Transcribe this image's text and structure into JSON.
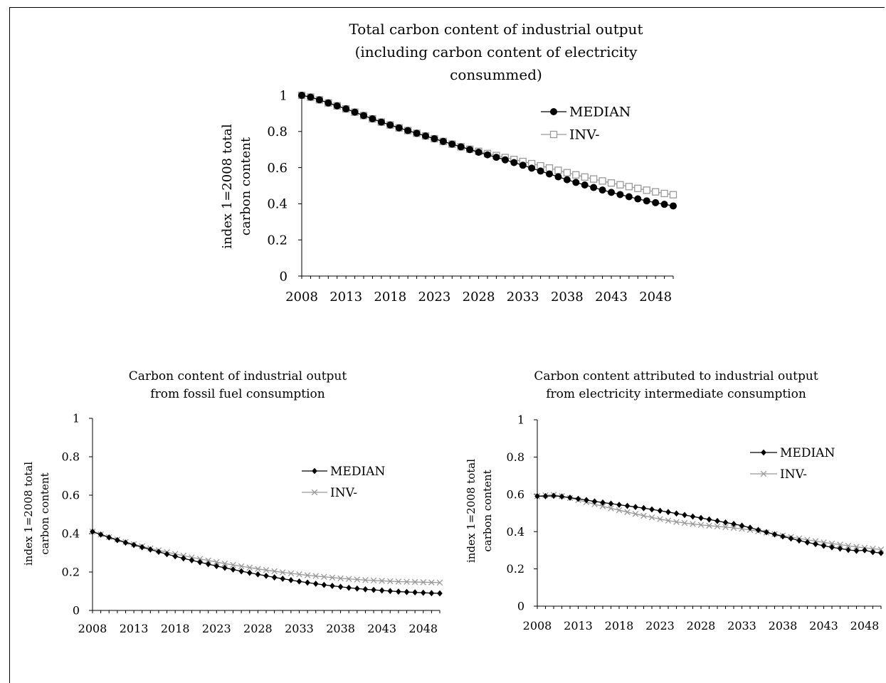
{
  "chart_data": [
    {
      "type": "line",
      "title": [
        "Total carbon content of industrial output",
        "(including carbon content of electricity",
        "consummed)"
      ],
      "ylabel": [
        "index 1=2008 total",
        "carbon content"
      ],
      "xlabel": "",
      "ylim": [
        0,
        1
      ],
      "yticks": [
        "0",
        "0.2",
        "0.4",
        "0.6",
        "0.8",
        "1"
      ],
      "xticks": [
        "2008",
        "2013",
        "2018",
        "2023",
        "2028",
        "2033",
        "2038",
        "2043",
        "2048"
      ],
      "legend_position": "top-right",
      "x": [
        2008,
        2009,
        2010,
        2011,
        2012,
        2013,
        2014,
        2015,
        2016,
        2017,
        2018,
        2019,
        2020,
        2021,
        2022,
        2023,
        2024,
        2025,
        2026,
        2027,
        2028,
        2029,
        2030,
        2031,
        2032,
        2033,
        2034,
        2035,
        2036,
        2037,
        2038,
        2039,
        2040,
        2041,
        2042,
        2043,
        2044,
        2045,
        2046,
        2047,
        2048,
        2049,
        2050
      ],
      "series": [
        {
          "name": "MEDIAN",
          "color": "#000000",
          "marker": "circle",
          "values": [
            1.0,
            0.99,
            0.975,
            0.958,
            0.942,
            0.925,
            0.907,
            0.888,
            0.87,
            0.852,
            0.836,
            0.82,
            0.805,
            0.79,
            0.775,
            0.76,
            0.745,
            0.73,
            0.715,
            0.7,
            0.685,
            0.671,
            0.657,
            0.643,
            0.628,
            0.613,
            0.597,
            0.581,
            0.565,
            0.549,
            0.533,
            0.518,
            0.504,
            0.49,
            0.476,
            0.463,
            0.451,
            0.439,
            0.427,
            0.416,
            0.406,
            0.397,
            0.388
          ]
        },
        {
          "name": "INV-",
          "color": "#999999",
          "marker": "square",
          "values": [
            1.0,
            0.99,
            0.975,
            0.958,
            0.942,
            0.925,
            0.907,
            0.888,
            0.87,
            0.852,
            0.836,
            0.82,
            0.805,
            0.79,
            0.775,
            0.76,
            0.745,
            0.73,
            0.715,
            0.702,
            0.69,
            0.678,
            0.667,
            0.656,
            0.645,
            0.634,
            0.622,
            0.61,
            0.598,
            0.585,
            0.572,
            0.56,
            0.548,
            0.537,
            0.526,
            0.515,
            0.505,
            0.495,
            0.485,
            0.475,
            0.466,
            0.457,
            0.45
          ]
        }
      ]
    },
    {
      "type": "line",
      "title": [
        "Carbon content of industrial output",
        "from fossil fuel consumption"
      ],
      "ylabel": [
        "index 1=2008 total",
        "carbon content"
      ],
      "xlabel": "",
      "ylim": [
        0,
        1
      ],
      "yticks": [
        "0",
        "0.2",
        "0.4",
        "0.6",
        "0.8",
        "1"
      ],
      "xticks": [
        "2008",
        "2013",
        "2018",
        "2023",
        "2028",
        "2033",
        "2038",
        "2043",
        "2048"
      ],
      "legend_position": "right",
      "x": [
        2008,
        2009,
        2010,
        2011,
        2012,
        2013,
        2014,
        2015,
        2016,
        2017,
        2018,
        2019,
        2020,
        2021,
        2022,
        2023,
        2024,
        2025,
        2026,
        2027,
        2028,
        2029,
        2030,
        2031,
        2032,
        2033,
        2034,
        2035,
        2036,
        2037,
        2038,
        2039,
        2040,
        2041,
        2042,
        2043,
        2044,
        2045,
        2046,
        2047,
        2048,
        2049,
        2050
      ],
      "series": [
        {
          "name": "MEDIAN",
          "color": "#000000",
          "marker": "diamond",
          "values": [
            0.41,
            0.395,
            0.38,
            0.366,
            0.353,
            0.341,
            0.329,
            0.317,
            0.305,
            0.293,
            0.282,
            0.271,
            0.261,
            0.251,
            0.241,
            0.231,
            0.222,
            0.213,
            0.204,
            0.196,
            0.188,
            0.18,
            0.172,
            0.165,
            0.158,
            0.151,
            0.145,
            0.139,
            0.133,
            0.128,
            0.123,
            0.118,
            0.114,
            0.11,
            0.107,
            0.104,
            0.101,
            0.098,
            0.096,
            0.094,
            0.092,
            0.09,
            0.089
          ]
        },
        {
          "name": "INV-",
          "color": "#999999",
          "marker": "cross",
          "values": [
            0.41,
            0.396,
            0.382,
            0.369,
            0.357,
            0.345,
            0.334,
            0.323,
            0.313,
            0.303,
            0.294,
            0.285,
            0.276,
            0.268,
            0.26,
            0.252,
            0.244,
            0.237,
            0.23,
            0.223,
            0.216,
            0.21,
            0.204,
            0.198,
            0.193,
            0.188,
            0.183,
            0.179,
            0.175,
            0.171,
            0.167,
            0.164,
            0.161,
            0.158,
            0.156,
            0.154,
            0.152,
            0.15,
            0.149,
            0.148,
            0.147,
            0.146,
            0.145
          ]
        }
      ]
    },
    {
      "type": "line",
      "title": [
        "Carbon content attributed to industrial output",
        "from electricity intermediate consumption"
      ],
      "ylabel": [
        "index 1=2008 total",
        "carbon content"
      ],
      "xlabel": "",
      "ylim": [
        0,
        1
      ],
      "yticks": [
        "0",
        "0.2",
        "0.4",
        "0.6",
        "0.8",
        "1"
      ],
      "xticks": [
        "2008",
        "2013",
        "2018",
        "2023",
        "2028",
        "2033",
        "2038",
        "2043",
        "2048"
      ],
      "legend_position": "top-right",
      "x": [
        2008,
        2009,
        2010,
        2011,
        2012,
        2013,
        2014,
        2015,
        2016,
        2017,
        2018,
        2019,
        2020,
        2021,
        2022,
        2023,
        2024,
        2025,
        2026,
        2027,
        2028,
        2029,
        2030,
        2031,
        2032,
        2033,
        2034,
        2035,
        2036,
        2037,
        2038,
        2039,
        2040,
        2041,
        2042,
        2043,
        2044,
        2045,
        2046,
        2047,
        2048,
        2049,
        2050
      ],
      "series": [
        {
          "name": "MEDIAN",
          "color": "#000000",
          "marker": "diamond",
          "values": [
            0.59,
            0.59,
            0.592,
            0.588,
            0.582,
            0.576,
            0.569,
            0.562,
            0.556,
            0.55,
            0.544,
            0.538,
            0.532,
            0.526,
            0.519,
            0.512,
            0.505,
            0.497,
            0.489,
            0.481,
            0.473,
            0.465,
            0.457,
            0.449,
            0.441,
            0.432,
            0.421,
            0.409,
            0.397,
            0.385,
            0.374,
            0.363,
            0.352,
            0.342,
            0.333,
            0.324,
            0.316,
            0.309,
            0.302,
            0.297,
            0.3,
            0.29,
            0.285
          ]
        },
        {
          "name": "INV-",
          "color": "#999999",
          "marker": "cross",
          "values": [
            0.59,
            0.595,
            0.597,
            0.59,
            0.58,
            0.569,
            0.558,
            0.547,
            0.536,
            0.525,
            0.515,
            0.505,
            0.495,
            0.485,
            0.476,
            0.467,
            0.459,
            0.452,
            0.446,
            0.441,
            0.436,
            0.432,
            0.428,
            0.424,
            0.42,
            0.415,
            0.409,
            0.402,
            0.395,
            0.387,
            0.379,
            0.371,
            0.363,
            0.356,
            0.349,
            0.342,
            0.336,
            0.33,
            0.324,
            0.318,
            0.313,
            0.308,
            0.304
          ]
        }
      ]
    }
  ]
}
